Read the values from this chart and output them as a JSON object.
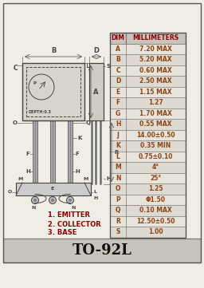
{
  "title": "TO-92L",
  "table_headers": [
    "DIM",
    "MILLIMETERS"
  ],
  "table_data": [
    [
      "A",
      "7.20 MAX"
    ],
    [
      "B",
      "5.20 MAX"
    ],
    [
      "C",
      "0.60 MAX"
    ],
    [
      "D",
      "2.50 MAX"
    ],
    [
      "E",
      "1.15 MAX"
    ],
    [
      "F",
      "1.27"
    ],
    [
      "G",
      "1.70 MAX"
    ],
    [
      "H",
      "0.55 MAX"
    ],
    [
      "J",
      "14.00±0.50"
    ],
    [
      "K",
      "0.35 MIN"
    ],
    [
      "L",
      "0.75±0.10"
    ],
    [
      "M",
      "4°"
    ],
    [
      "N",
      "25°"
    ],
    [
      "O",
      "1.25"
    ],
    [
      "P",
      "Φ1.50"
    ],
    [
      "Q",
      "0.10 MAX"
    ],
    [
      "R",
      "12.50±0.50"
    ],
    [
      "S",
      "1.00"
    ]
  ],
  "labels": [
    "1. EMITTER",
    "2. COLLECTOR",
    "3. BASE"
  ],
  "bg_color": "#f0ede6",
  "row_bg_even": "#e8e4dc",
  "row_bg_odd": "#dedad2",
  "header_bg": "#c8c4bc",
  "dim_color": "#8B4513",
  "val_color": "#8B4513",
  "header_color": "#8B0000",
  "title_color": "#111111",
  "drawing_color": "#444444",
  "label_color": "#8B0000",
  "title_bar_bg": "#c8c4bc"
}
